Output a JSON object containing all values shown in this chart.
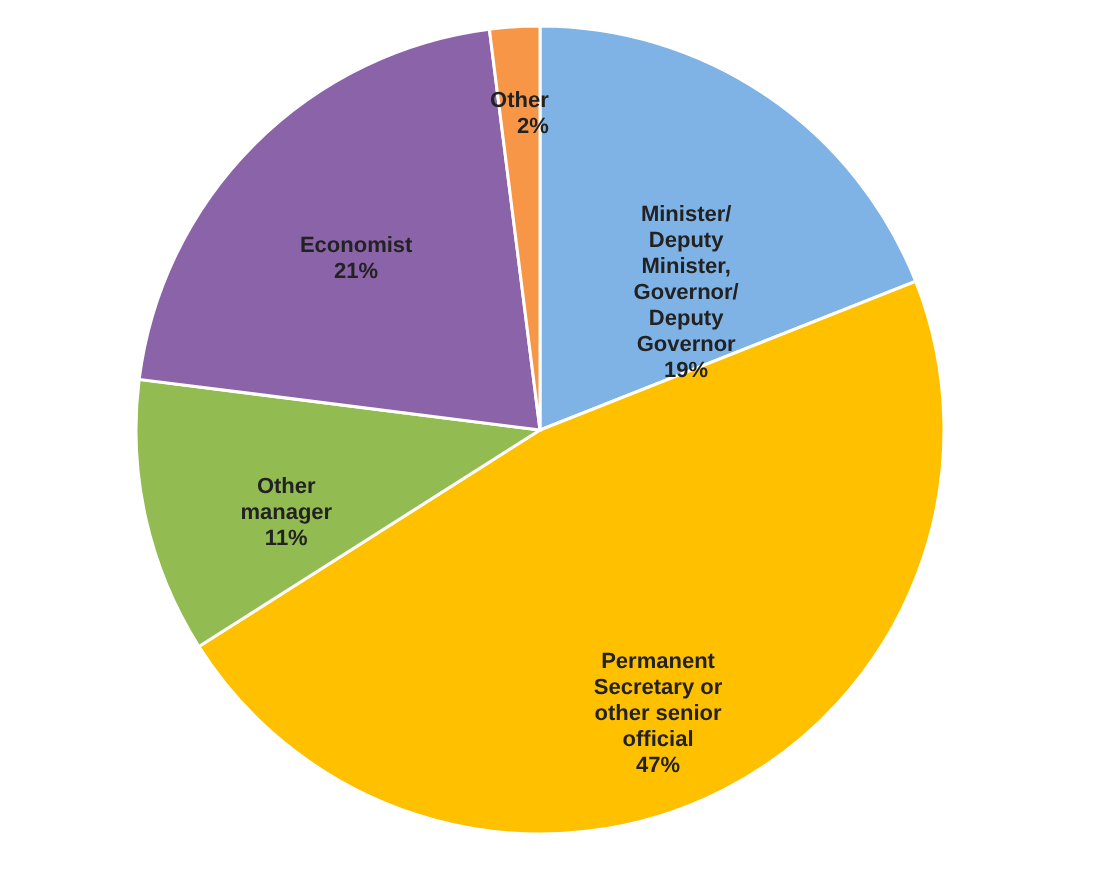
{
  "chart_data": {
    "type": "pie",
    "categories": [
      "Minister/ Deputy Minister, Governor/ Deputy Governor",
      "Permanent Secretary or other senior official",
      "Other manager",
      "Economist",
      "Other"
    ],
    "values": [
      19,
      47,
      11,
      21,
      2
    ],
    "colors": [
      "#7fb2e5",
      "#ffc000",
      "#92bb52",
      "#8a63a8",
      "#f79646"
    ],
    "value_labels": [
      "19%",
      "47%",
      "11%",
      "21%",
      "2%"
    ]
  }
}
